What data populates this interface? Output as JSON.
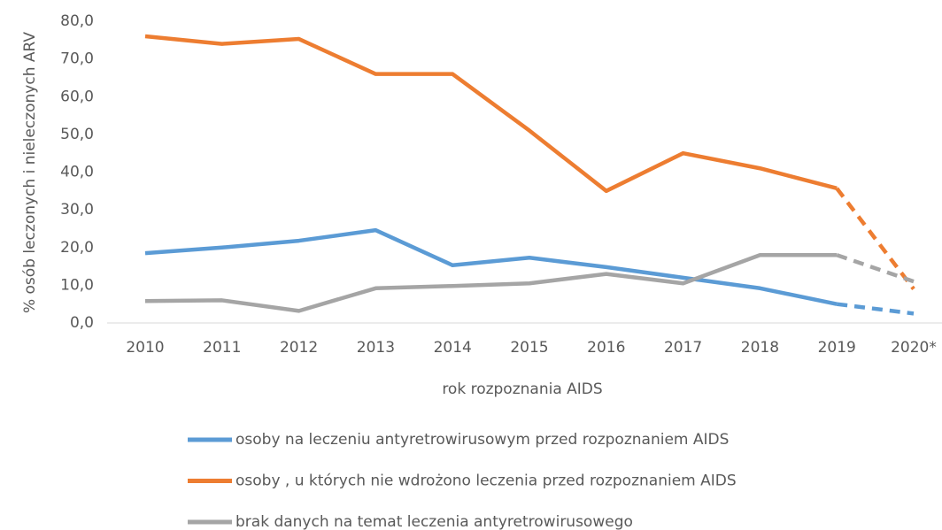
{
  "chart_data": {
    "type": "line",
    "x_label": "rok rozpoznania AIDS",
    "y_label": "% osób leczonych i nieleczonych ARV",
    "categories": [
      "2010",
      "2011",
      "2012",
      "2013",
      "2014",
      "2015",
      "2016",
      "2017",
      "2018",
      "2019",
      "2020*"
    ],
    "series": [
      {
        "name": "osoby na leczeniu antyretrowirusowym przed rozpoznaniem AIDS",
        "color": "#5b9bd5",
        "values": [
          18.5,
          20,
          21.8,
          24.6,
          15.3,
          17.3,
          14.8,
          12,
          9.2,
          5,
          2.5
        ]
      },
      {
        "name": "osoby , u których nie wdrożono leczenia przed rozpoznaniem  AIDS",
        "color": "#ed7d31",
        "values": [
          76,
          74,
          75.3,
          66,
          66,
          51,
          35,
          45,
          41,
          35.7,
          9
        ]
      },
      {
        "name": "brak danych na temat leczenia antyretrowirusowego",
        "color": "#a5a5a5",
        "values": [
          5.8,
          6,
          3.2,
          9.2,
          9.8,
          10.5,
          13,
          10.5,
          18,
          18,
          11
        ]
      }
    ],
    "dashed_from_index": 9,
    "ylim": [
      0,
      80
    ],
    "yticks": [
      {
        "value": 0,
        "label": "0,0"
      },
      {
        "value": 10,
        "label": "10,0"
      },
      {
        "value": 20,
        "label": "20,0"
      },
      {
        "value": 30,
        "label": "30,0"
      },
      {
        "value": 40,
        "label": "40,0"
      },
      {
        "value": 50,
        "label": "50,0"
      },
      {
        "value": 60,
        "label": "60,0"
      },
      {
        "value": 70,
        "label": "70,0"
      },
      {
        "value": 80,
        "label": "80,0"
      }
    ],
    "legend": "bottom"
  }
}
